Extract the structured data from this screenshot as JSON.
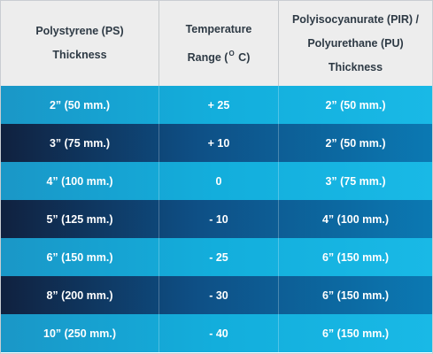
{
  "headers": {
    "ps": [
      "Polystyrene (PS)",
      "Thickness"
    ],
    "temp_prefix": "Temperature",
    "temp_range": "Range (",
    "temp_degree": "O",
    "temp_unit": " C)",
    "pir": [
      "Polyisocyanurate (PIR) /",
      "Polyurethane (PU)",
      "Thickness"
    ]
  },
  "rows": [
    {
      "ps": "2” (50 mm.)",
      "temp": "+ 25",
      "pir": "2” (50 mm.)",
      "shade": "light"
    },
    {
      "ps": "3” (75 mm.)",
      "temp": "+ 10",
      "pir": "2” (50 mm.)",
      "shade": "dark"
    },
    {
      "ps": "4” (100 mm.)",
      "temp": "0",
      "pir": "3” (75 mm.)",
      "shade": "light"
    },
    {
      "ps": "5” (125 mm.)",
      "temp": "- 10",
      "pir": "4” (100 mm.)",
      "shade": "dark"
    },
    {
      "ps": "6” (150 mm.)",
      "temp": "- 25",
      "pir": "6” (150 mm.)",
      "shade": "light"
    },
    {
      "ps": "8” (200 mm.)",
      "temp": "- 30",
      "pir": "6” (150 mm.)",
      "shade": "dark"
    },
    {
      "ps": "10” (250 mm.)",
      "temp": "- 40",
      "pir": "6” (150 mm.)",
      "shade": "light"
    }
  ],
  "colors": {
    "header_bg": "#ededed",
    "header_text": "#2e3a45",
    "row_light": "#13aedc",
    "row_dark": "#0e4f85"
  }
}
